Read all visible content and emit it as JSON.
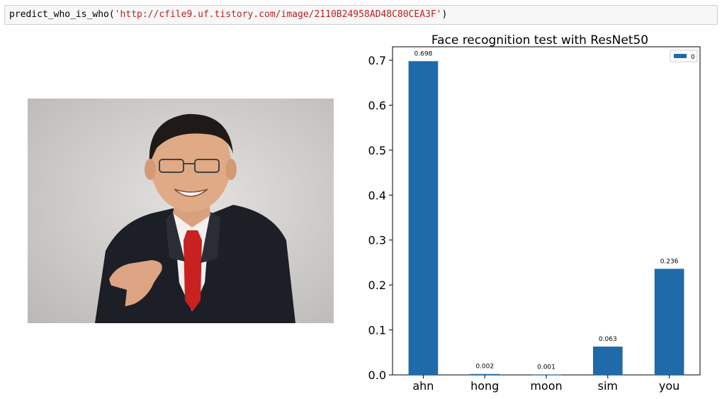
{
  "cell": {
    "code_prefix": "predict_who_is_who(",
    "code_string": "'http://cfile9.uf.tistory.com/image/2110B24958AD48C80CEA3F'",
    "code_suffix": ")"
  },
  "colors": {
    "bar": "#1f6aa9",
    "code_string": "#ba2121",
    "cell_background": "#f7f7f7"
  },
  "chart_data": {
    "type": "bar",
    "title": "Face recognition test with ResNet50",
    "categories": [
      "ahn",
      "hong",
      "moon",
      "sim",
      "you"
    ],
    "series": [
      {
        "name": "0",
        "values": [
          0.698,
          0.002,
          0.001,
          0.063,
          0.236
        ]
      }
    ],
    "data_labels": [
      "0.698",
      "0.002",
      "0.001",
      "0.063",
      "0.236"
    ],
    "yticks": [
      "0.0",
      "0.1",
      "0.2",
      "0.3",
      "0.4",
      "0.5",
      "0.6",
      "0.7"
    ],
    "ylim": [
      0,
      0.73
    ],
    "grid": false,
    "legend": "top-right"
  }
}
